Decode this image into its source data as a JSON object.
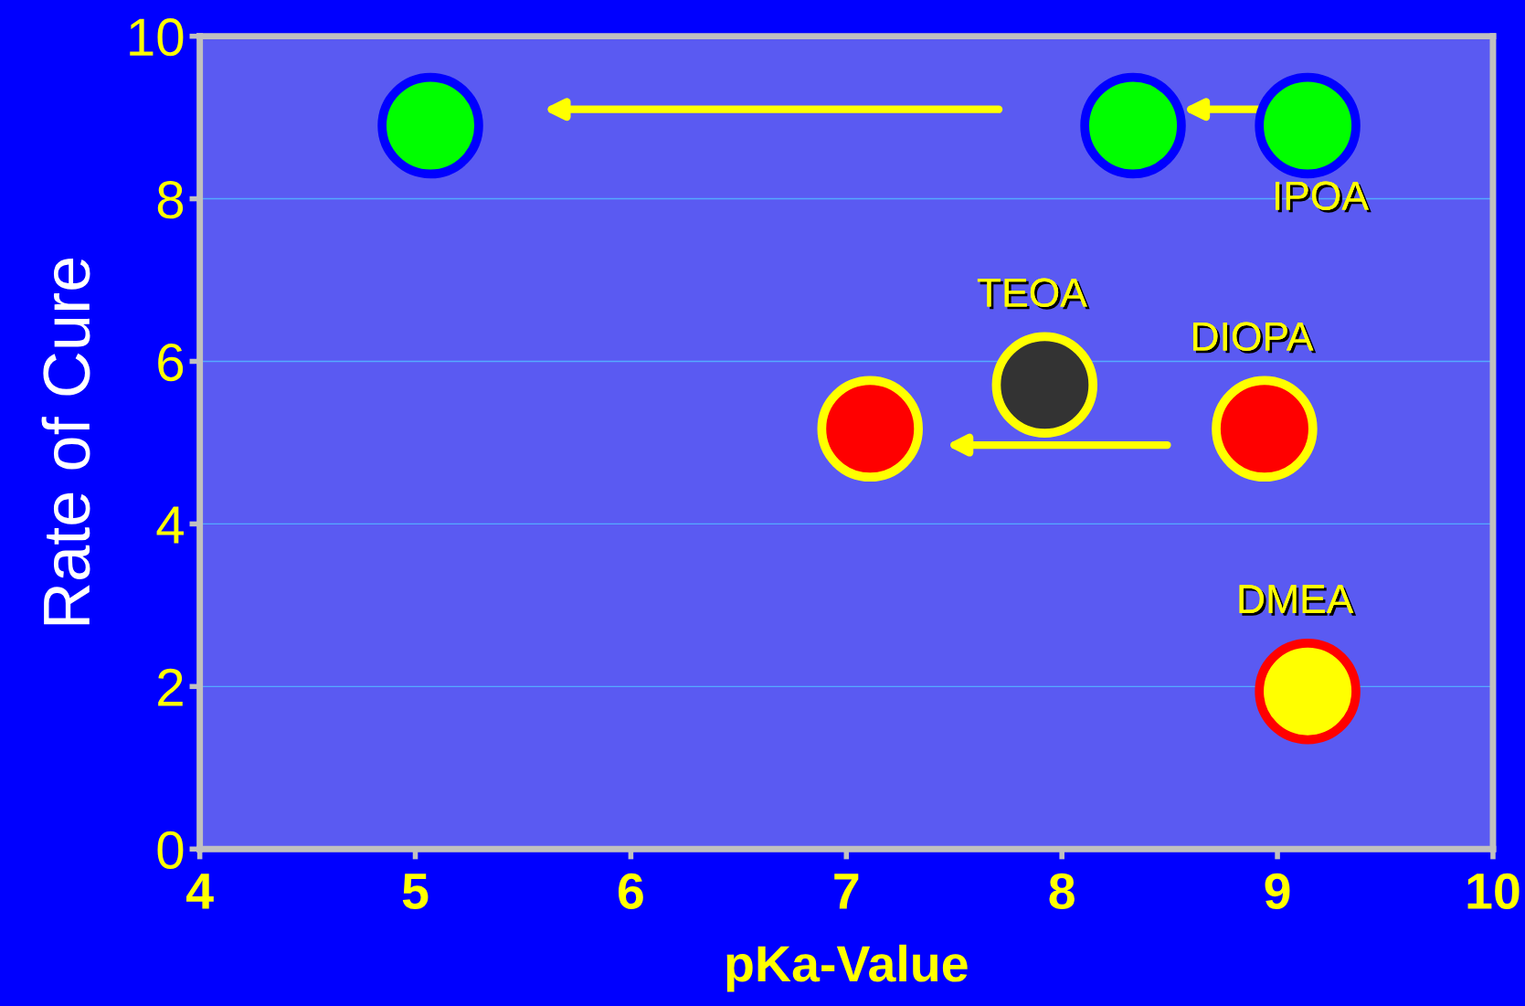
{
  "chart_data": {
    "type": "scatter",
    "xlabel": "pKa-Value",
    "ylabel": "Rate of Cure",
    "xlim": [
      4,
      10
    ],
    "ylim": [
      0,
      10
    ],
    "xticks": [
      4,
      5,
      6,
      7,
      8,
      9,
      10
    ],
    "yticks": [
      0,
      2,
      4,
      6,
      8,
      10
    ],
    "grid": "y",
    "marker": "circle",
    "series": [
      {
        "color": "#00ff00",
        "x": [
          9.14,
          8.33,
          5.07
        ],
        "values": [
          8.9,
          8.9,
          8.9
        ]
      },
      {
        "color": "#ff0000",
        "x": [
          8.94,
          7.11
        ],
        "values": [
          5.17,
          5.17
        ]
      },
      {
        "color": "#333333",
        "x": [
          7.92
        ],
        "values": [
          5.71
        ]
      },
      {
        "color": "#ffff00",
        "x": [
          9.14
        ],
        "values": [
          1.94
        ]
      }
    ],
    "annotations": [
      {
        "text": "IPOA",
        "x": 9.14,
        "y": 8.9
      },
      {
        "text": "TEOA",
        "x": 7.92,
        "y": 5.71
      },
      {
        "text": "DIOPA",
        "x": 8.94,
        "y": 5.17
      },
      {
        "text": "DMEA",
        "x": 9.14,
        "y": 1.94
      }
    ]
  }
}
